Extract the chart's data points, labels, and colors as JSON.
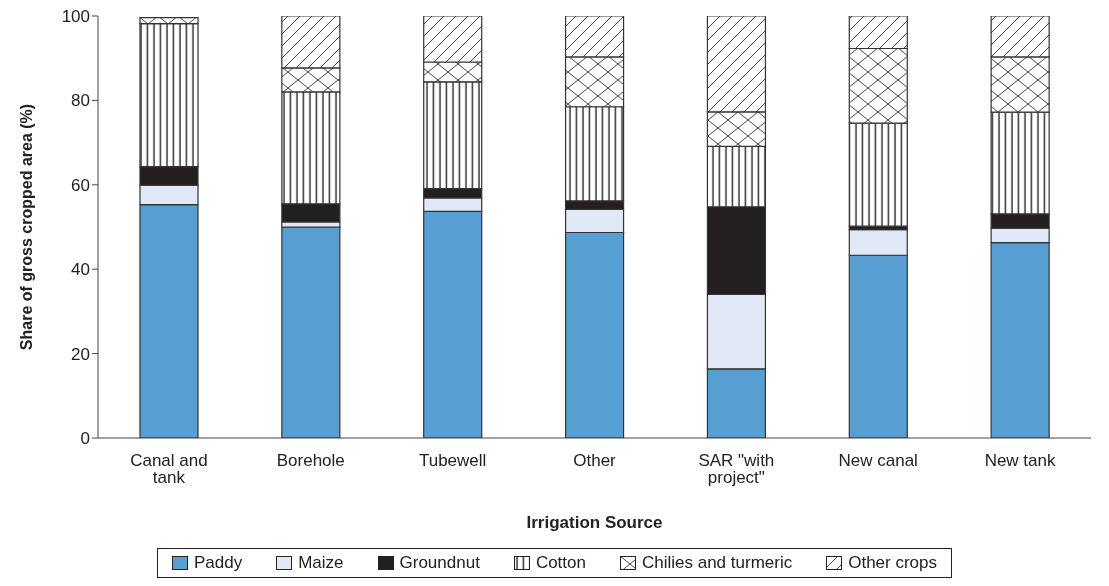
{
  "chart_data": {
    "type": "bar",
    "stacked": true,
    "xlabel": "Irrigation Source",
    "ylabel": "Share of gross cropped area (%)",
    "categories": [
      "Canal and tank",
      "Borehole",
      "Tubewell",
      "Other",
      "SAR \"with project\"",
      "New canal",
      "New tank"
    ],
    "ylim": [
      0,
      100
    ],
    "yticks": [
      0,
      20,
      40,
      60,
      80,
      100
    ],
    "legend": "bottom",
    "series": [
      {
        "name": "Paddy",
        "color": "#579fd2",
        "values": [
          55.3,
          50.0,
          53.7,
          48.7,
          16.4,
          43.3,
          46.3
        ]
      },
      {
        "name": "Maize",
        "color": "#e1e8f6",
        "values": [
          4.6,
          1.2,
          3.2,
          5.5,
          17.6,
          6.1,
          3.4
        ]
      },
      {
        "name": "Groundnut",
        "color": "#231f20",
        "values": [
          4.4,
          4.3,
          2.2,
          2.0,
          20.8,
          0.8,
          3.4
        ]
      },
      {
        "name": "Cotton",
        "color": "#333333",
        "values": [
          33.9,
          26.5,
          25.3,
          22.3,
          14.3,
          24.4,
          24.1
        ]
      },
      {
        "name": "Chilies and turmeric",
        "color": "#333333",
        "values": [
          1.4,
          5.7,
          4.7,
          11.8,
          8.2,
          17.7,
          13.1
        ]
      },
      {
        "name": "Other crops",
        "color": "#333333",
        "values": [
          0,
          12.3,
          10.9,
          9.7,
          22.7,
          7.7,
          9.7
        ]
      }
    ]
  }
}
